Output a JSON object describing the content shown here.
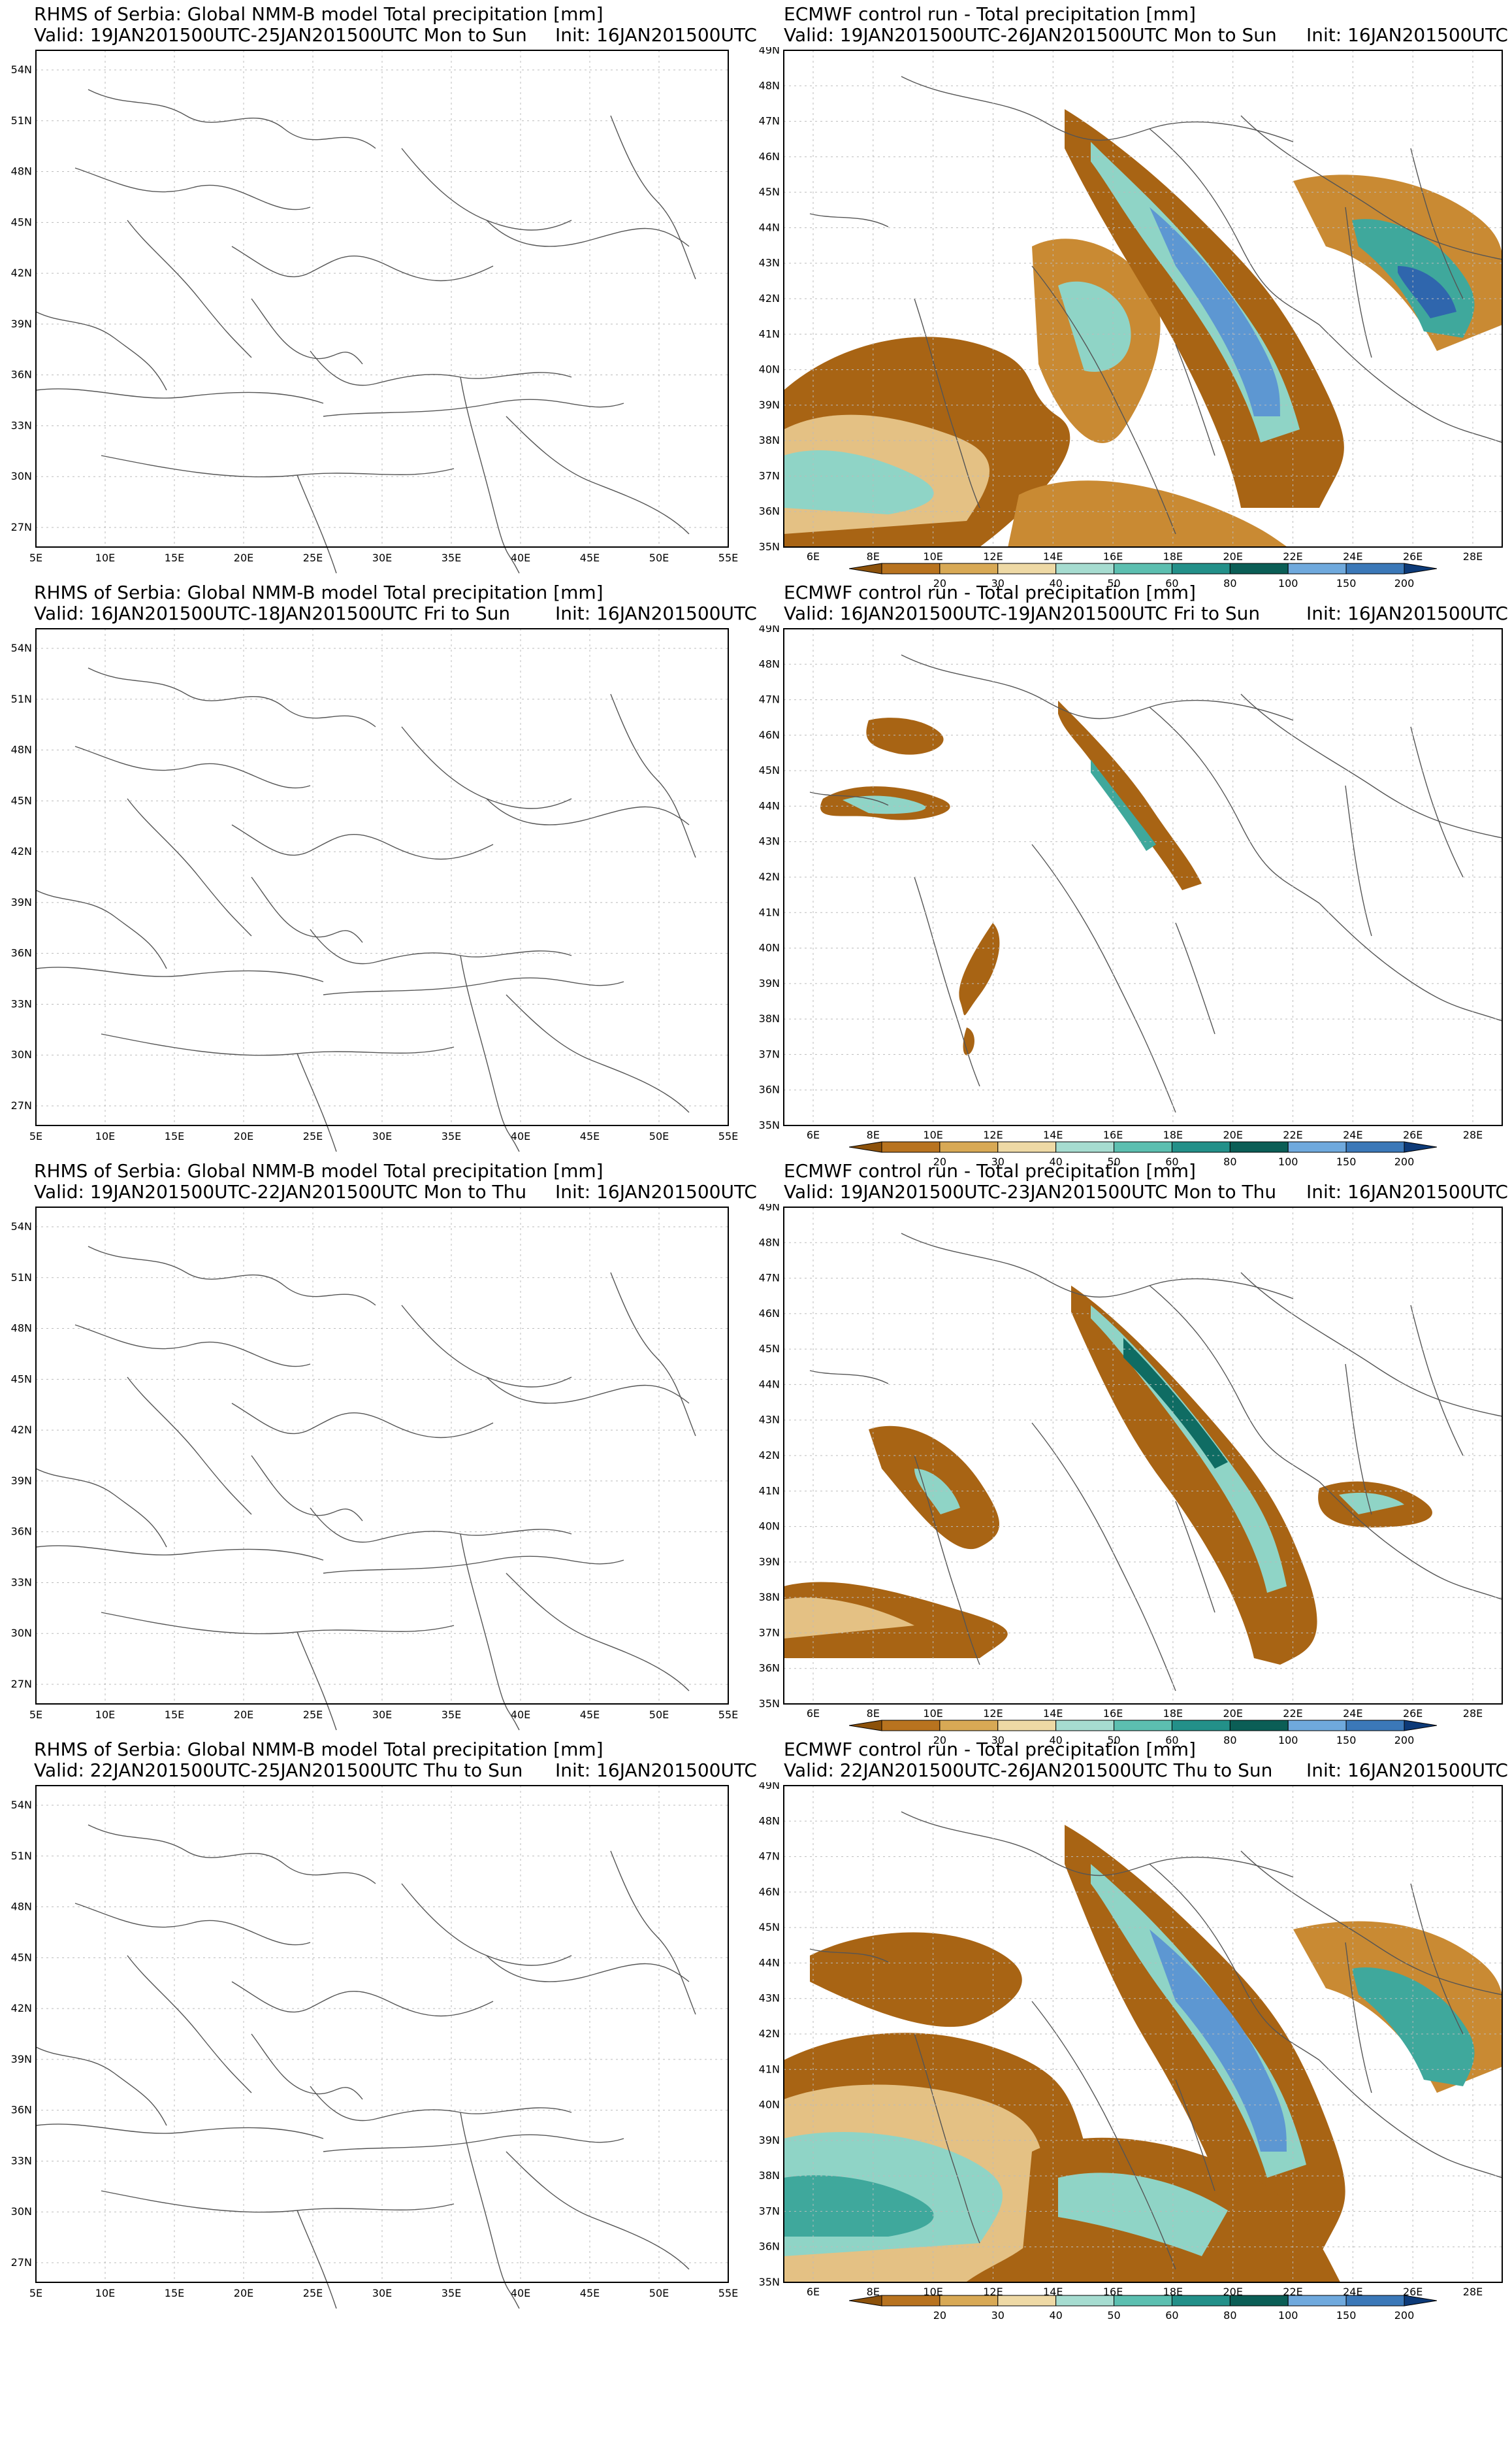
{
  "left_panels": [
    {
      "title": "RHMS of Serbia: Global NMM-B model Total precipitation [mm]",
      "valid": "Valid: 19JAN201500UTC-25JAN201500UTC Mon to Sun",
      "init": "Init: 16JAN201500UTC"
    },
    {
      "title": "RHMS of Serbia: Global NMM-B model Total precipitation [mm]",
      "valid": "Valid: 16JAN201500UTC-18JAN201500UTC Fri to Sun",
      "init": "Init: 16JAN201500UTC"
    },
    {
      "title": "RHMS of Serbia: Global NMM-B model Total precipitation [mm]",
      "valid": "Valid: 19JAN201500UTC-22JAN201500UTC Mon to Thu",
      "init": "Init: 16JAN201500UTC"
    },
    {
      "title": "RHMS of Serbia: Global NMM-B model Total precipitation [mm]",
      "valid": "Valid: 22JAN201500UTC-25JAN201500UTC Thu to Sun",
      "init": "Init: 16JAN201500UTC"
    }
  ],
  "right_panels": [
    {
      "title": "ECMWF control run - Total precipitation [mm]",
      "valid": "Valid: 19JAN201500UTC-26JAN201500UTC Mon to Sun",
      "init": "Init: 16JAN201500UTC"
    },
    {
      "title": "ECMWF control run - Total precipitation [mm]",
      "valid": "Valid: 16JAN201500UTC-19JAN201500UTC Fri to Sun",
      "init": "Init: 16JAN201500UTC"
    },
    {
      "title": "ECMWF control run - Total precipitation [mm]",
      "valid": "Valid: 19JAN201500UTC-23JAN201500UTC Mon to Thu",
      "init": "Init: 16JAN201500UTC"
    },
    {
      "title": "ECMWF control run - Total precipitation [mm]",
      "valid": "Valid: 22JAN201500UTC-26JAN201500UTC Thu to Sun",
      "init": "Init: 16JAN201500UTC"
    }
  ],
  "left_axes": {
    "lon_labels": [
      "5E",
      "10E",
      "15E",
      "20E",
      "25E",
      "30E",
      "35E",
      "40E",
      "45E",
      "50E",
      "55E"
    ],
    "lat_labels": [
      "54N",
      "51N",
      "48N",
      "45N",
      "42N",
      "39N",
      "36N",
      "33N",
      "30N",
      "27N"
    ]
  },
  "right_axes": {
    "lon_labels": [
      "6E",
      "8E",
      "10E",
      "12E",
      "14E",
      "16E",
      "18E",
      "20E",
      "22E",
      "24E",
      "26E",
      "28E"
    ],
    "lat_labels": [
      "49N",
      "48N",
      "47N",
      "46N",
      "45N",
      "44N",
      "43N",
      "42N",
      "41N",
      "40N",
      "39N",
      "38N",
      "37N",
      "36N",
      "35N"
    ]
  },
  "colorbar": {
    "labels": [
      "20",
      "30",
      "40",
      "50",
      "60",
      "80",
      "100",
      "150",
      "200"
    ],
    "colors": [
      "#8c510a",
      "#b8731f",
      "#d8a955",
      "#eed9a5",
      "#a6dcd0",
      "#5cbfb0",
      "#239089",
      "#0b5e56",
      "#6fa9dd",
      "#3b78b8",
      "#0d3a78"
    ]
  },
  "precip_levels": {
    "c1": "#a86414",
    "c2": "#c98a33",
    "c3": "#e4c184",
    "c4": "#8fd4c6",
    "c5": "#3fa89c",
    "c6": "#0f6c63",
    "c7": "#5d97d2",
    "c8": "#2f66ad"
  }
}
